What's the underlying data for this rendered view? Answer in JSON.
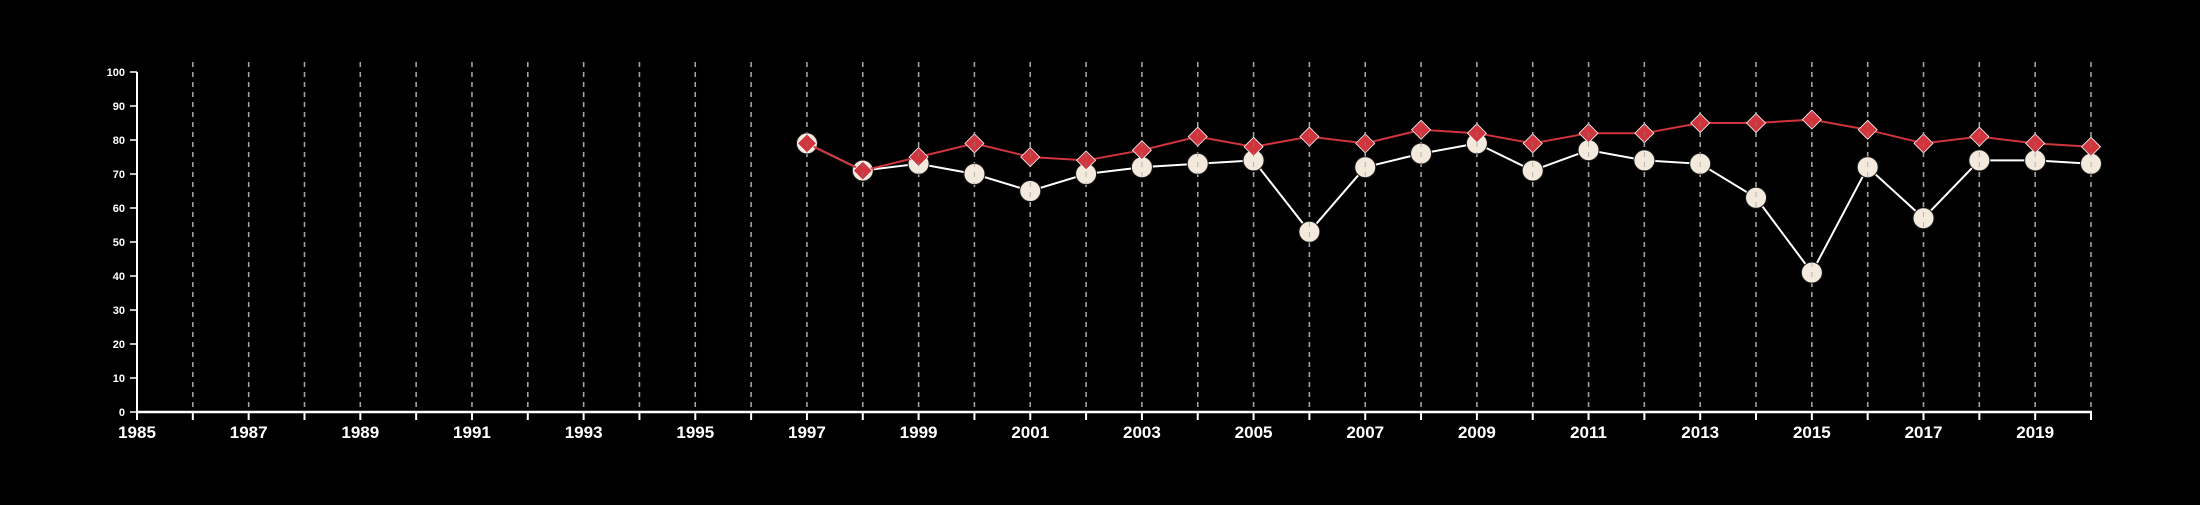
{
  "chart_data": {
    "type": "line",
    "title": "",
    "xlabel": "",
    "ylabel": "",
    "xlim": [
      1985,
      2020
    ],
    "ylim": [
      0,
      100
    ],
    "x_ticks_labeled": [
      "1985",
      "1987",
      "1989",
      "1991",
      "1993",
      "1995",
      "1997",
      "1999",
      "2001",
      "2003",
      "2005",
      "2007",
      "2009",
      "2011",
      "2013",
      "2015",
      "2017",
      "2019"
    ],
    "y_ticks": [
      "0",
      "10",
      "20",
      "30",
      "40",
      "50",
      "60",
      "70",
      "80",
      "90",
      "100"
    ],
    "grid": "vertical dashed at every year",
    "legend": "none",
    "series": [
      {
        "marker": "diamond",
        "color": "#d0343c",
        "x": [
          1997,
          1998,
          1999,
          2000,
          2001,
          2002,
          2003,
          2004,
          2005,
          2006,
          2007,
          2008,
          2009,
          2010,
          2011,
          2012,
          2013,
          2014,
          2015,
          2016,
          2017,
          2018,
          2019,
          2020
        ],
        "values": [
          79,
          71,
          75,
          79,
          75,
          74,
          77,
          81,
          78,
          81,
          79,
          83,
          82,
          79,
          82,
          82,
          85,
          85,
          86,
          83,
          79,
          81,
          79,
          78
        ]
      },
      {
        "marker": "circle",
        "color": "#f3e9dc",
        "line_color": "#ffffff",
        "x": [
          1997,
          1998,
          1999,
          2000,
          2001,
          2002,
          2003,
          2004,
          2005,
          2006,
          2007,
          2008,
          2009,
          2010,
          2011,
          2012,
          2013,
          2014,
          2015,
          2016,
          2017,
          2018,
          2019,
          2020
        ],
        "values": [
          79,
          71,
          73,
          70,
          65,
          70,
          72,
          73,
          74,
          53,
          72,
          76,
          79,
          71,
          77,
          74,
          73,
          63,
          41,
          72,
          57,
          74,
          74,
          73
        ]
      }
    ]
  }
}
